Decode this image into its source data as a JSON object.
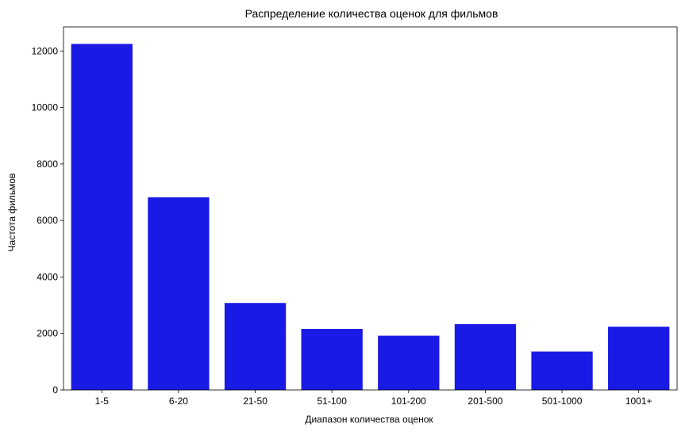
{
  "chart_data": {
    "type": "bar",
    "title": "Распределение количества оценок для фильмов",
    "xlabel": "Диапазон количества оценок",
    "ylabel": "Частота фильмов",
    "categories": [
      "1-5",
      "6-20",
      "21-50",
      "51-100",
      "101-200",
      "201-500",
      "501-1000",
      "1001+"
    ],
    "values": [
      12250,
      6820,
      3080,
      2160,
      1920,
      2330,
      1360,
      2240
    ],
    "ylim": [
      0,
      12850
    ],
    "yticks": [
      0,
      2000,
      4000,
      6000,
      8000,
      10000,
      12000
    ],
    "bar_color": "#1a1ae6",
    "grid": false
  }
}
